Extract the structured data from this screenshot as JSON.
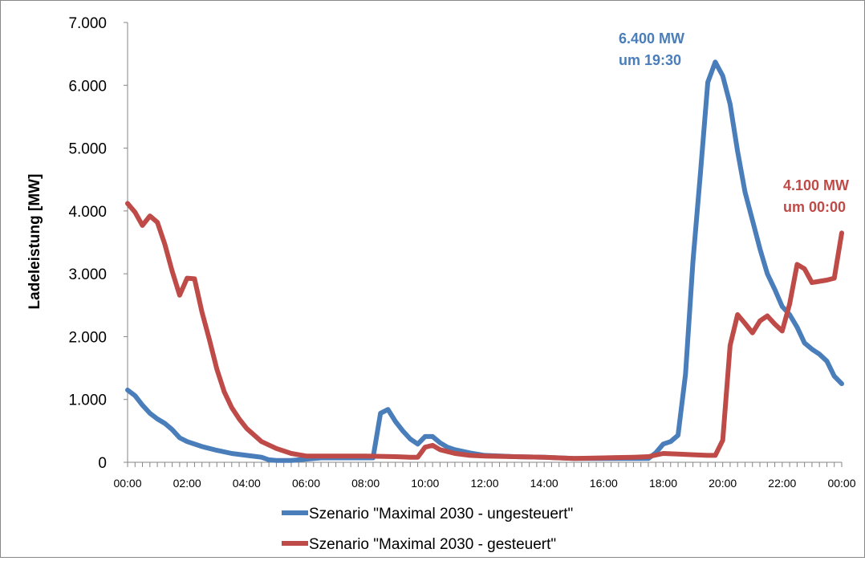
{
  "chart_data": {
    "type": "line",
    "title": "",
    "xlabel": "",
    "ylabel": "Ladeleistung [MW]",
    "ylim": [
      0,
      7000
    ],
    "y_ticks": [
      "0",
      "1.000",
      "2.000",
      "3.000",
      "4.000",
      "5.000",
      "6.000",
      "7.000"
    ],
    "x_tick_labels": [
      "00:00",
      "02:00",
      "04:00",
      "06:00",
      "08:00",
      "10:00",
      "12:00",
      "14:00",
      "16:00",
      "18:00",
      "20:00",
      "22:00",
      "00:00"
    ],
    "x_unit": "hours",
    "xlim": [
      0,
      24
    ],
    "grid": false,
    "legend_placement": "bottom",
    "series": [
      {
        "name": "Szenario \"Maximal 2030 - ungesteuert\"",
        "color": "#4a7ebb",
        "points": [
          [
            0,
            1150
          ],
          [
            0.25,
            1060
          ],
          [
            0.5,
            910
          ],
          [
            0.75,
            780
          ],
          [
            1,
            690
          ],
          [
            1.25,
            620
          ],
          [
            1.5,
            520
          ],
          [
            1.75,
            390
          ],
          [
            2,
            330
          ],
          [
            2.5,
            250
          ],
          [
            3,
            190
          ],
          [
            3.5,
            140
          ],
          [
            4,
            110
          ],
          [
            4.5,
            80
          ],
          [
            4.75,
            40
          ],
          [
            5,
            30
          ],
          [
            5.5,
            30
          ],
          [
            6,
            50
          ],
          [
            6.5,
            70
          ],
          [
            7,
            70
          ],
          [
            7.5,
            70
          ],
          [
            8,
            70
          ],
          [
            8.25,
            70
          ],
          [
            8.5,
            780
          ],
          [
            8.75,
            840
          ],
          [
            9,
            650
          ],
          [
            9.25,
            500
          ],
          [
            9.5,
            370
          ],
          [
            9.75,
            290
          ],
          [
            10,
            410
          ],
          [
            10.25,
            410
          ],
          [
            10.5,
            310
          ],
          [
            10.75,
            240
          ],
          [
            11,
            200
          ],
          [
            11.5,
            150
          ],
          [
            12,
            110
          ],
          [
            13,
            90
          ],
          [
            14,
            80
          ],
          [
            15,
            60
          ],
          [
            16,
            60
          ],
          [
            17,
            60
          ],
          [
            17.5,
            60
          ],
          [
            17.75,
            150
          ],
          [
            18,
            290
          ],
          [
            18.25,
            330
          ],
          [
            18.5,
            430
          ],
          [
            18.75,
            1400
          ],
          [
            19,
            3200
          ],
          [
            19.25,
            4600
          ],
          [
            19.5,
            6050
          ],
          [
            19.75,
            6370
          ],
          [
            20,
            6150
          ],
          [
            20.25,
            5700
          ],
          [
            20.5,
            4950
          ],
          [
            20.75,
            4300
          ],
          [
            21,
            3850
          ],
          [
            21.25,
            3400
          ],
          [
            21.5,
            3000
          ],
          [
            21.75,
            2750
          ],
          [
            22,
            2480
          ],
          [
            22.25,
            2350
          ],
          [
            22.5,
            2150
          ],
          [
            22.75,
            1900
          ],
          [
            23,
            1800
          ],
          [
            23.25,
            1720
          ],
          [
            23.5,
            1610
          ],
          [
            23.75,
            1370
          ],
          [
            24,
            1250
          ]
        ]
      },
      {
        "name": "Szenario \"Maximal 2030 - gesteuert\"",
        "color": "#be4b48",
        "points": [
          [
            0,
            4120
          ],
          [
            0.25,
            3980
          ],
          [
            0.5,
            3770
          ],
          [
            0.75,
            3920
          ],
          [
            1,
            3820
          ],
          [
            1.25,
            3470
          ],
          [
            1.5,
            3040
          ],
          [
            1.75,
            2660
          ],
          [
            2,
            2930
          ],
          [
            2.25,
            2920
          ],
          [
            2.5,
            2390
          ],
          [
            2.75,
            1950
          ],
          [
            3,
            1480
          ],
          [
            3.25,
            1120
          ],
          [
            3.5,
            870
          ],
          [
            3.75,
            690
          ],
          [
            4,
            540
          ],
          [
            4.5,
            330
          ],
          [
            5,
            220
          ],
          [
            5.5,
            140
          ],
          [
            6,
            100
          ],
          [
            6.5,
            100
          ],
          [
            7,
            100
          ],
          [
            7.5,
            100
          ],
          [
            8,
            100
          ],
          [
            9,
            90
          ],
          [
            9.5,
            80
          ],
          [
            9.75,
            80
          ],
          [
            10,
            240
          ],
          [
            10.25,
            270
          ],
          [
            10.5,
            200
          ],
          [
            11,
            140
          ],
          [
            11.5,
            110
          ],
          [
            12,
            100
          ],
          [
            13,
            90
          ],
          [
            14,
            80
          ],
          [
            15,
            60
          ],
          [
            16,
            70
          ],
          [
            17,
            80
          ],
          [
            17.5,
            90
          ],
          [
            18,
            140
          ],
          [
            18.5,
            130
          ],
          [
            19,
            120
          ],
          [
            19.5,
            110
          ],
          [
            19.75,
            110
          ],
          [
            20,
            350
          ],
          [
            20.25,
            1860
          ],
          [
            20.5,
            2350
          ],
          [
            20.75,
            2210
          ],
          [
            21,
            2060
          ],
          [
            21.25,
            2250
          ],
          [
            21.5,
            2330
          ],
          [
            21.75,
            2200
          ],
          [
            22,
            2090
          ],
          [
            22.25,
            2520
          ],
          [
            22.5,
            3150
          ],
          [
            22.75,
            3080
          ],
          [
            23,
            2860
          ],
          [
            23.25,
            2880
          ],
          [
            23.5,
            2900
          ],
          [
            23.75,
            2930
          ],
          [
            24,
            3650
          ]
        ]
      }
    ],
    "annotations": [
      {
        "lines": [
          "6.400 MW",
          "um 19:30"
        ],
        "color": "#4a7ebb",
        "x": 19.5,
        "y": 6400
      },
      {
        "lines": [
          "4.100 MW",
          "um 00:00"
        ],
        "color": "#be4b48",
        "x": 24,
        "y": 4100
      }
    ]
  }
}
